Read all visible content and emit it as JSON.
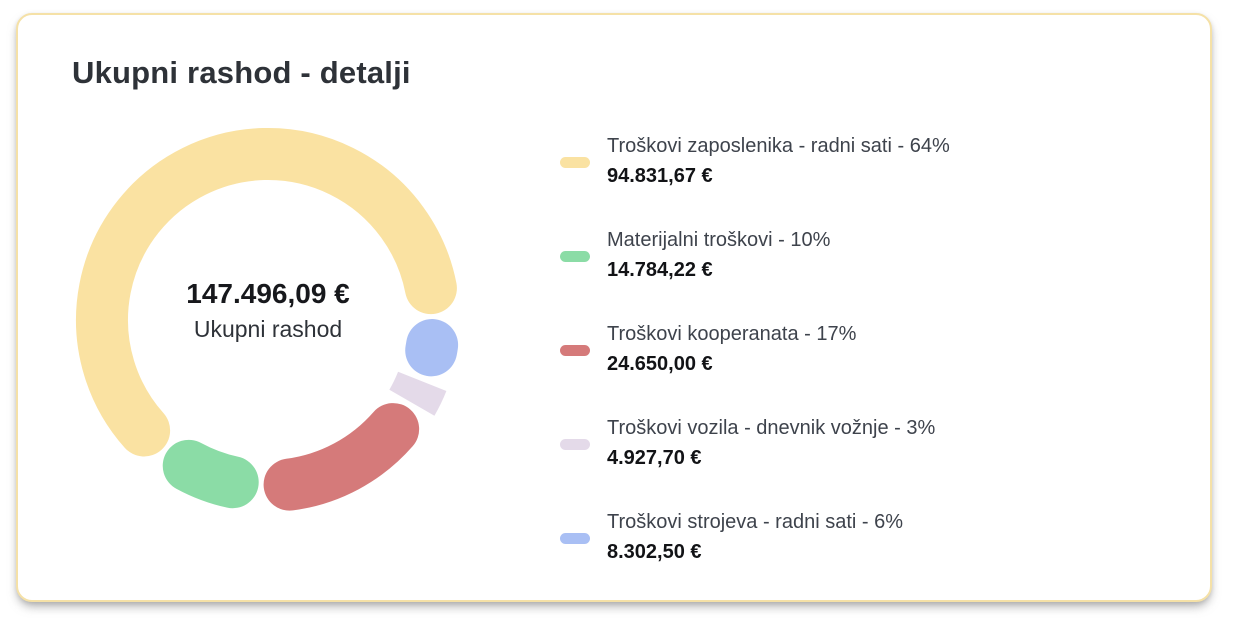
{
  "card": {
    "title": "Ukupni rashod - detalji"
  },
  "chart_data": {
    "type": "pie",
    "subtype": "donut",
    "title": "Ukupni rashod - detalji",
    "legend_position": "right",
    "center": {
      "value": "147.496,09 €",
      "label": "Ukupni rashod"
    },
    "total_value_eur": 147496.09,
    "start_angle_deg": 88.8,
    "direction": "counterclockwise",
    "slices": [
      {
        "label": "Troškovi zaposlenika - radni sati",
        "legend_label": "Troškovi zaposlenika - radni sati - 64%",
        "percent": 64,
        "value_eur": 94831.67,
        "display_value": "94.831,67 €",
        "color": "#FAE2A2",
        "cap": "round"
      },
      {
        "label": "Materijalni troškovi",
        "legend_label": "Materijalni troškovi - 10%",
        "percent": 10,
        "value_eur": 14784.22,
        "display_value": "14.784,22 €",
        "color": "#8BDCA6",
        "cap": "round"
      },
      {
        "label": "Troškovi kooperanata",
        "legend_label": "Troškovi kooperanata - 17%",
        "percent": 17,
        "value_eur": 24650.0,
        "display_value": "24.650,00 €",
        "color": "#D57A7A",
        "cap": "round"
      },
      {
        "label": "Troškovi vozila - dnevnik vožnje",
        "legend_label": "Troškovi vozila - dnevnik vožnje - 3%",
        "percent": 3,
        "value_eur": 4927.7,
        "display_value": "4.927,70 €",
        "color": "#E4DAE9",
        "cap": "butt"
      },
      {
        "label": "Troškovi strojeva - radni sati",
        "legend_label": "Troškovi strojeva - radni sati - 6%",
        "percent": 6,
        "value_eur": 8302.5,
        "display_value": "8.302,50 €",
        "color": "#A9BFF4",
        "cap": "round"
      }
    ]
  },
  "colors": {
    "card_border": "#F5E1A7",
    "title_text": "#2e3238",
    "legend_label_text": "#3e434c",
    "legend_value_text": "#121316"
  }
}
